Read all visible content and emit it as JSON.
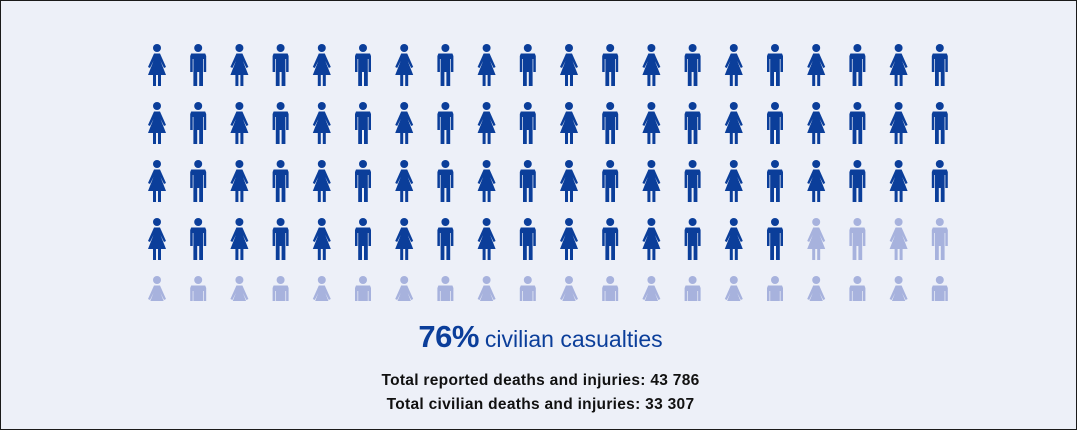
{
  "chart_data": {
    "type": "pictogram",
    "total_icons": 100,
    "rows": 5,
    "columns": 20,
    "civilian_share_percent": 76,
    "civilian_icons": 76,
    "icon_pattern": [
      "female-icon",
      "male-icon"
    ],
    "colors": {
      "civilian": "#0b3e9a",
      "other": "#a7b2dd",
      "background": "#edf0f8",
      "headline": "#0b3e9a",
      "stats_text": "#111111"
    },
    "headline": {
      "percent": "76%",
      "label": "civilian casualties"
    },
    "stats": [
      {
        "text": "Total reported deaths and injuries: 43 786",
        "value": 43786
      },
      {
        "text": "Total civilian deaths and injuries:  33 307",
        "value": 33307
      }
    ]
  }
}
